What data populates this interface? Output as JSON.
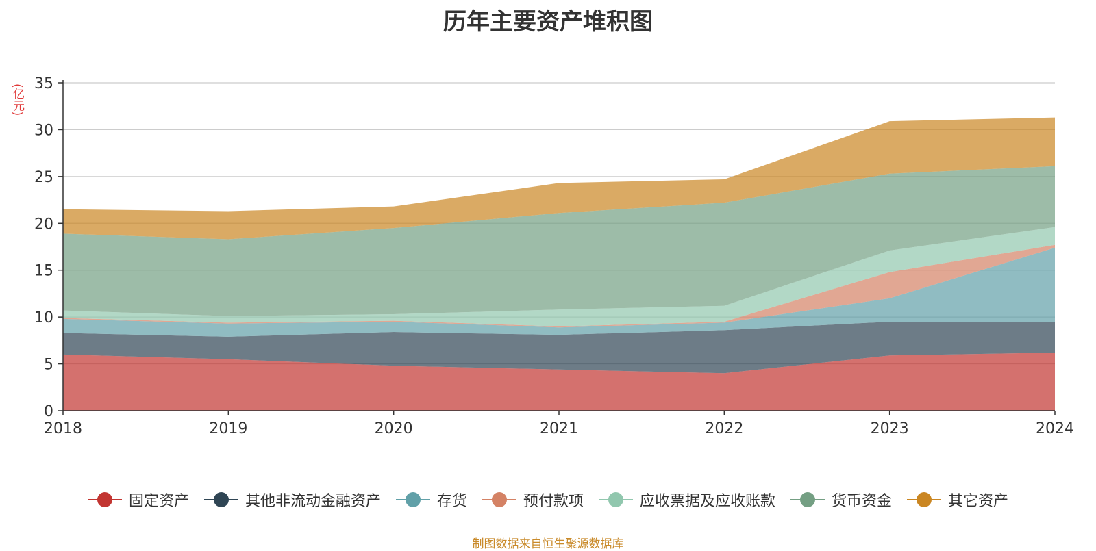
{
  "chart_data": {
    "type": "area",
    "title": "历年主要资产堆积图",
    "ylabel": "(亿元)",
    "xlabel": "",
    "x": [
      "2018",
      "2019",
      "2020",
      "2021",
      "2022",
      "2023",
      "2024"
    ],
    "ylim": [
      0,
      35
    ],
    "yticks": [
      0,
      5,
      10,
      15,
      20,
      25,
      30,
      35
    ],
    "stacked": true,
    "grid": true,
    "legend_position": "bottom",
    "series": [
      {
        "name": "固定资产",
        "color": "#c23531",
        "values": [
          6.0,
          5.5,
          4.8,
          4.4,
          4.0,
          5.9,
          6.2
        ]
      },
      {
        "name": "其他非流动金融资产",
        "color": "#2f4554",
        "values": [
          2.3,
          2.4,
          3.6,
          3.7,
          4.6,
          3.6,
          3.3
        ]
      },
      {
        "name": "存货",
        "color": "#61a0a8",
        "values": [
          1.5,
          1.4,
          1.1,
          0.8,
          0.8,
          2.5,
          7.9
        ]
      },
      {
        "name": "预付款项",
        "color": "#d48265",
        "values": [
          0.1,
          0.1,
          0.1,
          0.1,
          0.1,
          2.8,
          0.3
        ]
      },
      {
        "name": "应收票据及应收账款",
        "color": "#91c7ae",
        "values": [
          0.8,
          0.7,
          0.7,
          1.8,
          1.7,
          2.3,
          1.9
        ]
      },
      {
        "name": "货币资金",
        "color": "#749f83",
        "values": [
          8.2,
          8.2,
          9.2,
          10.3,
          11.0,
          8.2,
          6.5
        ]
      },
      {
        "name": "其它资产",
        "color": "#ca8622",
        "values": [
          2.6,
          3.0,
          2.3,
          3.2,
          2.5,
          5.6,
          5.2
        ]
      }
    ]
  },
  "source_note": "制图数据来自恒生聚源数据库"
}
